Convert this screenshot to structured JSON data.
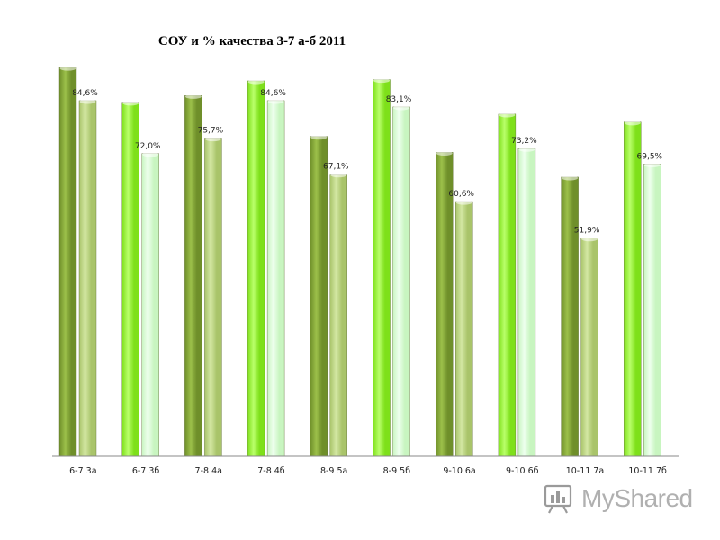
{
  "title": "СОУ и % качества 3-7 а-б 2011",
  "watermark": {
    "text": "MyShared",
    "icon": "myshared-logo-icon"
  },
  "colors": {
    "a_dark": "#6f8f2a",
    "a_dark_hi": "#9cc04a",
    "a_light": "#a9c46a",
    "a_light_hi": "#d3e7a3",
    "b_dark": "#7ee01a",
    "b_dark_hi": "#b9ff6a",
    "b_light": "#c8f5c0",
    "b_light_hi": "#eeffee",
    "axis": "#888888"
  },
  "chart_data": {
    "type": "bar",
    "title": "СОУ и % качества 3-7 а-б 2011",
    "xlabel": "",
    "ylabel": "",
    "ylim": [
      0,
      100
    ],
    "grid": false,
    "legend": "none",
    "categories": [
      "6-7 3а",
      "6-7 3б",
      "7-8 4а",
      "7-8 4б",
      "8-9 5а",
      "8-9 5б",
      "9-10 6а",
      "9-10 6б",
      "10-11 7а",
      "10-11 7б"
    ],
    "series": [
      {
        "values": [
          92.5,
          84.2,
          85.8,
          89.3,
          76.1,
          89.6,
          72.3,
          81.4,
          66.4,
          79.5
        ]
      },
      {
        "values": [
          84.6,
          72.0,
          75.7,
          84.6,
          67.1,
          83.1,
          60.6,
          73.2,
          51.9,
          69.5
        ]
      }
    ],
    "data_labels": [
      "84,6%",
      "72,0%",
      "75,7%",
      "84,6%",
      "67,1%",
      "83,1%",
      "60,6%",
      "73,2%",
      "51,9%",
      "69,5%"
    ]
  }
}
